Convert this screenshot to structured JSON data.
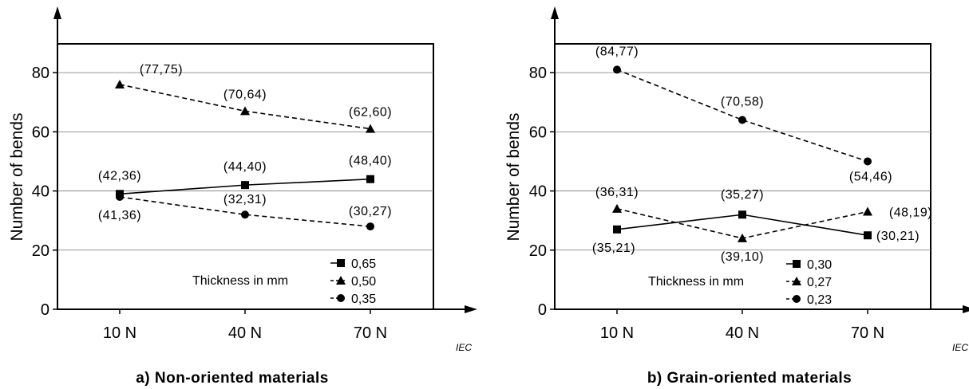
{
  "chart_data": [
    {
      "type": "line",
      "caption": "a)   Non-oriented materials",
      "ylabel": "Number of bends",
      "categories": [
        "10 N",
        "40 N",
        "70 N"
      ],
      "ylim": [
        0,
        90
      ],
      "yticks": [
        0,
        20,
        40,
        60,
        80
      ],
      "grid": true,
      "legend_title": "Thickness in mm",
      "legend_placement": "bottom-right",
      "series": [
        {
          "name": "0,65",
          "marker": "square",
          "dash": "solid",
          "values": [
            39,
            42,
            44
          ],
          "labels": [
            "(42,36)",
            "(44,40)",
            "(48,40)"
          ],
          "label_pos": [
            "above",
            "above",
            "above"
          ]
        },
        {
          "name": "0,50",
          "marker": "triangle",
          "dash": "dashed",
          "values": [
            76,
            67,
            61
          ],
          "labels": [
            "(77,75)",
            "(70,64)",
            "(62,60)"
          ],
          "label_pos": [
            "above-right",
            "above",
            "above"
          ]
        },
        {
          "name": "0,35",
          "marker": "circle",
          "dash": "dashed",
          "values": [
            38,
            32,
            28
          ],
          "labels": [
            "(41,36)",
            "(32,31)",
            "(30,27)"
          ],
          "label_pos": [
            "below",
            "above",
            "above"
          ]
        }
      ],
      "iec_mark": "IEC"
    },
    {
      "type": "line",
      "caption": "b)   Grain-oriented materials",
      "ylabel": "Number of bends",
      "categories": [
        "10 N",
        "40 N",
        "70 N"
      ],
      "ylim": [
        0,
        90
      ],
      "yticks": [
        0,
        20,
        40,
        60,
        80
      ],
      "grid": true,
      "legend_title": "Thickness in mm",
      "legend_placement": "bottom-right",
      "series": [
        {
          "name": "0,30",
          "marker": "square",
          "dash": "solid",
          "values": [
            27,
            32,
            25
          ],
          "labels": [
            "(35,21)",
            "(35,27)",
            "(30,21)"
          ],
          "label_pos": [
            "below",
            "above",
            "right"
          ]
        },
        {
          "name": "0,27",
          "marker": "triangle",
          "dash": "dashed",
          "values": [
            34,
            24,
            33
          ],
          "labels": [
            "(36,31)",
            "(39,10)",
            "(48,19)"
          ],
          "label_pos": [
            "above",
            "below",
            "right"
          ]
        },
        {
          "name": "0,23",
          "marker": "circle",
          "dash": "dashed",
          "values": [
            81,
            64,
            50
          ],
          "labels": [
            "(84,77)",
            "(70,58)",
            "(54,46)"
          ],
          "label_pos": [
            "above",
            "above",
            "below"
          ]
        }
      ],
      "iec_mark": "IEC"
    }
  ]
}
